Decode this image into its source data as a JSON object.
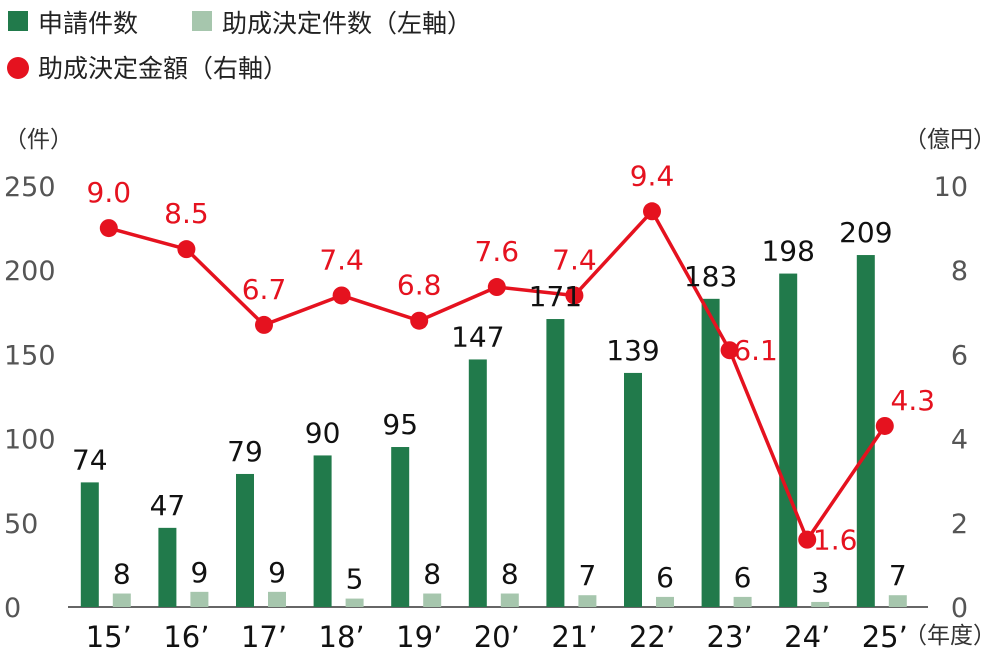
{
  "chart_data": {
    "type": "bar+line",
    "categories": [
      "15’",
      "16’",
      "17’",
      "18’",
      "19’",
      "20’",
      "21’",
      "22’",
      "23’",
      "24’",
      "25’"
    ],
    "series": [
      {
        "name": "申請件数",
        "type": "bar",
        "axis": "left",
        "color": "#217a4b",
        "values": [
          74,
          47,
          79,
          90,
          95,
          147,
          171,
          139,
          183,
          198,
          209
        ]
      },
      {
        "name": "助成決定件数（左軸）",
        "type": "bar",
        "axis": "left",
        "color": "#a6c6ad",
        "values": [
          8,
          9,
          9,
          5,
          8,
          8,
          7,
          6,
          6,
          3,
          7
        ]
      },
      {
        "name": "助成決定金額（右軸）",
        "type": "line",
        "axis": "right",
        "color": "#e5121f",
        "values": [
          9.0,
          8.5,
          6.7,
          7.4,
          6.8,
          7.6,
          7.4,
          9.4,
          6.1,
          1.6,
          4.3
        ],
        "labels": [
          "9.0",
          "8.5",
          "6.7",
          "7.4",
          "6.8",
          "7.6",
          "7.4",
          "9.4",
          "6.1",
          "1.6",
          "4.3"
        ]
      }
    ],
    "left_axis": {
      "label": "（件）",
      "ylim": [
        0,
        250
      ],
      "ticks": [
        0,
        50,
        100,
        150,
        200,
        250
      ]
    },
    "right_axis": {
      "label": "（億円）",
      "ylim": [
        0,
        10
      ],
      "ticks": [
        0,
        2,
        4,
        6,
        8,
        10
      ]
    },
    "x_axis": {
      "label": "（年度）"
    },
    "legend_position": "top-left",
    "grid": false
  }
}
